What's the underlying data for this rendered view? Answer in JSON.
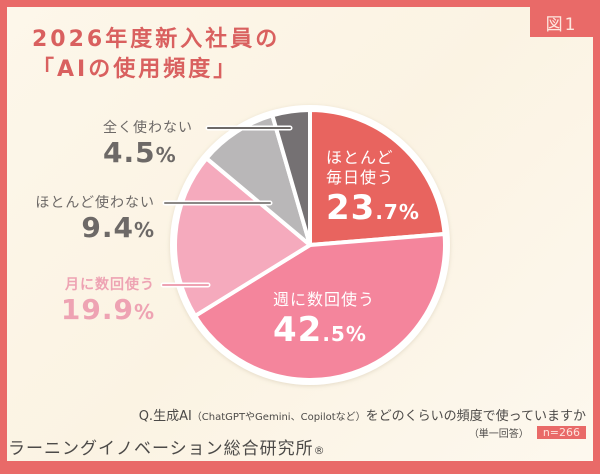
{
  "figure_tag": "図1",
  "title": {
    "line1": "2026年度新入社員の",
    "line2": "「AIの使用頻度」"
  },
  "question": {
    "prefix": "Q.生成AI",
    "paren": "（ChatGPTやGemini、Copilotなど）",
    "suffix": "をどのくらいの頻度で使っていますか",
    "answer_type": "（単一回答）",
    "sample_size": "n=266"
  },
  "organization": {
    "name": "ラーニングイノベーション総合研究所",
    "mark": "®"
  },
  "colors": {
    "frame": "#e96a68",
    "title": "#d9605f",
    "almost_daily": "#e8645f",
    "several_weekly": "#f4859c",
    "several_monthly": "#f5aabd",
    "rarely": "#b9b7b8",
    "never": "#757173"
  },
  "labels": {
    "almost_daily": {
      "name_line1": "ほとんど",
      "name_line2": "毎日使う",
      "int": "23",
      "dec": ".7",
      "pct": "%"
    },
    "several_weekly": {
      "name": "週に数回使う",
      "int": "42",
      "dec": ".5",
      "pct": "%"
    },
    "several_monthly": {
      "name": "月に数回使う",
      "int": "19",
      "dec": ".9",
      "pct": "%"
    },
    "rarely": {
      "name": "ほとんど使わない",
      "int": "9",
      "dec": ".4",
      "pct": "%"
    },
    "never": {
      "name": "全く使わない",
      "int": "4",
      "dec": ".5",
      "pct": "%"
    }
  },
  "chart_data": {
    "type": "pie",
    "title": "2026年度新入社員の「AIの使用頻度」",
    "subtitle": "Q.生成AI（ChatGPTやGemini、Copilotなど）をどのくらいの頻度で使っていますか（単一回答）n=266",
    "categories": [
      "ほとんど毎日使う",
      "週に数回使う",
      "月に数回使う",
      "ほとんど使わない",
      "全く使わない"
    ],
    "values": [
      23.7,
      42.5,
      19.9,
      9.4,
      4.5
    ],
    "unit": "%",
    "colors": [
      "#e8645f",
      "#f4859c",
      "#f5aabd",
      "#b9b7b8",
      "#757173"
    ],
    "start_angle_deg": 0,
    "direction": "clockwise",
    "legend": "none (direct labels)",
    "n": 266
  }
}
